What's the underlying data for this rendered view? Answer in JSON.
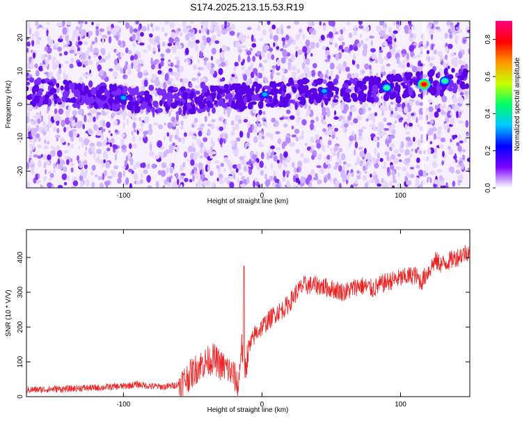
{
  "figure": {
    "title": "S174.2025.213.15.53.R19"
  },
  "chart_data": [
    {
      "type": "heatmap",
      "xlabel": "Height of straight line (km)",
      "ylabel": "Frequency (Hz)",
      "xlim": [
        -170,
        150
      ],
      "ylim": [
        -25,
        25
      ],
      "xticks": [
        -100,
        0,
        100
      ],
      "yticks": [
        -20,
        -10,
        0,
        10,
        20
      ],
      "xtick_labels": [
        "-100",
        "0",
        "100"
      ],
      "ytick_labels": [
        "-20",
        "-10",
        "0",
        "10",
        "20"
      ],
      "colorbar": {
        "label": "Normalized spectral amplitude",
        "range": [
          0,
          0.9
        ],
        "ticks": [
          0,
          0.2,
          0.4,
          0.6,
          0.8
        ],
        "tick_labels": [
          "0.0",
          "0.2",
          "0.4",
          "0.6",
          "0.8"
        ],
        "colormap": [
          "#ffffff",
          "#7a00ff",
          "#0000ff",
          "#00c8ff",
          "#00ff66",
          "#c8ff00",
          "#ff9900",
          "#ff0000",
          "#ff0080"
        ]
      },
      "ridge": {
        "description_values": [
          {
            "x": -170,
            "y": 4
          },
          {
            "x": -100,
            "y": 2
          },
          {
            "x": -50,
            "y": 1
          },
          {
            "x": 0,
            "y": 3
          },
          {
            "x": 50,
            "y": 4
          },
          {
            "x": 100,
            "y": 5
          },
          {
            "x": 150,
            "y": 8
          }
        ]
      },
      "hotspots": [
        {
          "x": -100,
          "y": 2,
          "value": 0.35
        },
        {
          "x": 2,
          "y": 3,
          "value": 0.35
        },
        {
          "x": 45,
          "y": 4,
          "value": 0.3
        },
        {
          "x": 90,
          "y": 5,
          "value": 0.45
        },
        {
          "x": 117,
          "y": 6,
          "value": 0.9
        },
        {
          "x": 132,
          "y": 7,
          "value": 0.45
        }
      ]
    },
    {
      "type": "line",
      "xlabel": "Height of straight line (km)",
      "ylabel": "SNR (10 * V/V)",
      "xlim": [
        -170,
        150
      ],
      "ylim": [
        0,
        480
      ],
      "xticks": [
        -100,
        0,
        100
      ],
      "yticks": [
        0,
        100,
        200,
        300,
        400
      ],
      "xtick_labels": [
        "-100",
        "0",
        "100"
      ],
      "ytick_labels": [
        "0",
        "100",
        "200",
        "300",
        "400"
      ],
      "series": [
        {
          "color": "#ee2222",
          "x": [
            -170,
            -160,
            -150,
            -140,
            -130,
            -120,
            -110,
            -100,
            -90,
            -80,
            -70,
            -60,
            -55,
            -50,
            -45,
            -40,
            -35,
            -30,
            -25,
            -20,
            -17,
            -15,
            -12,
            -10,
            -5,
            0,
            5,
            10,
            15,
            20,
            25,
            30,
            40,
            50,
            60,
            70,
            80,
            90,
            100,
            110,
            115,
            120,
            125,
            130,
            140,
            150
          ],
          "y": [
            20,
            20,
            22,
            22,
            25,
            25,
            28,
            30,
            35,
            30,
            28,
            35,
            50,
            70,
            90,
            100,
            110,
            90,
            80,
            60,
            25,
            150,
            80,
            130,
            180,
            200,
            220,
            240,
            250,
            270,
            300,
            320,
            320,
            310,
            300,
            320,
            310,
            330,
            340,
            350,
            330,
            360,
            390,
            380,
            400,
            420
          ]
        }
      ]
    }
  ]
}
